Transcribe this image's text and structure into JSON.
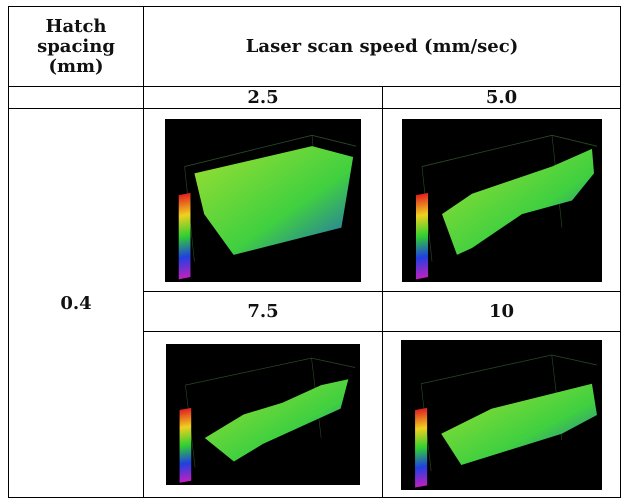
{
  "table": {
    "header": [
      "Hatch spacing (mm)",
      "Laser scan speed (mm/sec)"
    ],
    "speeds": [
      "2.5",
      "5.0",
      "7.5",
      "10"
    ],
    "hatch_spacing": "0.4"
  }
}
